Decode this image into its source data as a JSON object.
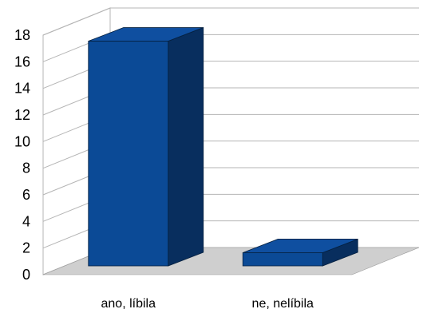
{
  "chart_data": {
    "type": "bar",
    "title": "",
    "xlabel": "",
    "ylabel": "",
    "categories": [
      "ano, líbila",
      "ne, nelíbila"
    ],
    "values": [
      17,
      1
    ],
    "ylim": [
      0,
      18
    ],
    "yticks": [
      0,
      2,
      4,
      6,
      8,
      10,
      12,
      14,
      16,
      18
    ],
    "grid": true,
    "three_d": true,
    "legend": "none",
    "colors": {
      "bar_front": "#0B4A96",
      "bar_top": "#0F4FA0",
      "bar_side": "#082E5E",
      "floor": "#CFCFCF",
      "grid": "#B5B5B5",
      "wall": "#ffffff"
    }
  }
}
